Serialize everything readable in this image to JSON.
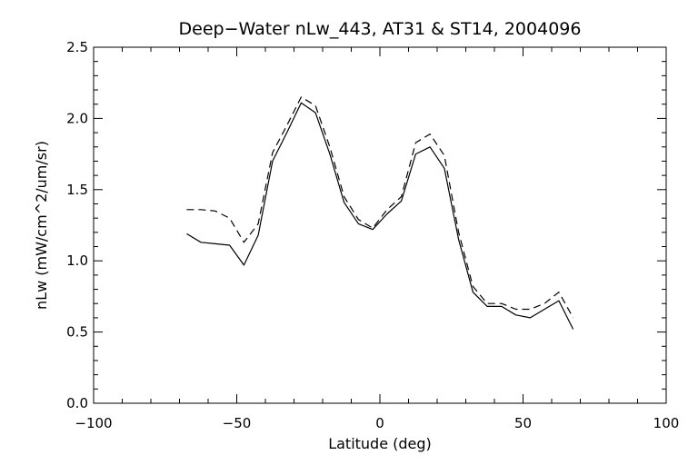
{
  "chart_data": {
    "type": "line",
    "title": "Deep−Water nLw_443, AT31 & ST14, 2004096",
    "xlabel": "Latitude (deg)",
    "ylabel": "nLw (mW/cm^2/um/sr)",
    "xlim": [
      -100,
      100
    ],
    "ylim": [
      0.0,
      2.5
    ],
    "xticks": [
      -100,
      -50,
      0,
      50,
      100
    ],
    "xtick_labels": [
      "−100",
      "−50",
      "0",
      "50",
      "100"
    ],
    "yticks": [
      0.0,
      0.5,
      1.0,
      1.5,
      2.0,
      2.5
    ],
    "ytick_labels": [
      "0.0",
      "0.5",
      "1.0",
      "1.5",
      "2.0",
      "2.5"
    ],
    "grid": false,
    "legend": "none",
    "series": [
      {
        "style": "solid",
        "color": "#000000",
        "x": [
          -67.5,
          -62.5,
          -57.5,
          -52.5,
          -47.5,
          -42.5,
          -37.5,
          -32.5,
          -27.5,
          -22.5,
          -17.5,
          -12.5,
          -7.5,
          -2.5,
          2.5,
          7.5,
          12.5,
          17.5,
          22.5,
          27.5,
          32.5,
          37.5,
          42.5,
          47.5,
          52.5,
          57.5,
          62.5,
          67.5
        ],
        "y": [
          1.19,
          1.13,
          1.12,
          1.11,
          0.97,
          1.18,
          1.7,
          1.9,
          2.11,
          2.04,
          1.75,
          1.41,
          1.26,
          1.22,
          1.33,
          1.42,
          1.75,
          1.8,
          1.65,
          1.15,
          0.78,
          0.68,
          0.68,
          0.62,
          0.6,
          0.66,
          0.72,
          0.52
        ]
      },
      {
        "style": "dashed",
        "color": "#000000",
        "x": [
          -67.5,
          -62.5,
          -57.5,
          -52.5,
          -47.5,
          -42.5,
          -37.5,
          -32.5,
          -27.5,
          -22.5,
          -17.5,
          -12.5,
          -7.5,
          -2.5,
          2.5,
          7.5,
          12.5,
          17.5,
          22.5,
          27.5,
          32.5,
          37.5,
          42.5,
          47.5,
          52.5,
          57.5,
          62.5,
          67.5
        ],
        "y": [
          1.36,
          1.36,
          1.35,
          1.3,
          1.13,
          1.26,
          1.76,
          1.95,
          2.15,
          2.09,
          1.8,
          1.45,
          1.29,
          1.23,
          1.36,
          1.45,
          1.83,
          1.89,
          1.74,
          1.2,
          0.82,
          0.7,
          0.7,
          0.66,
          0.66,
          0.7,
          0.78,
          0.6
        ]
      }
    ]
  }
}
